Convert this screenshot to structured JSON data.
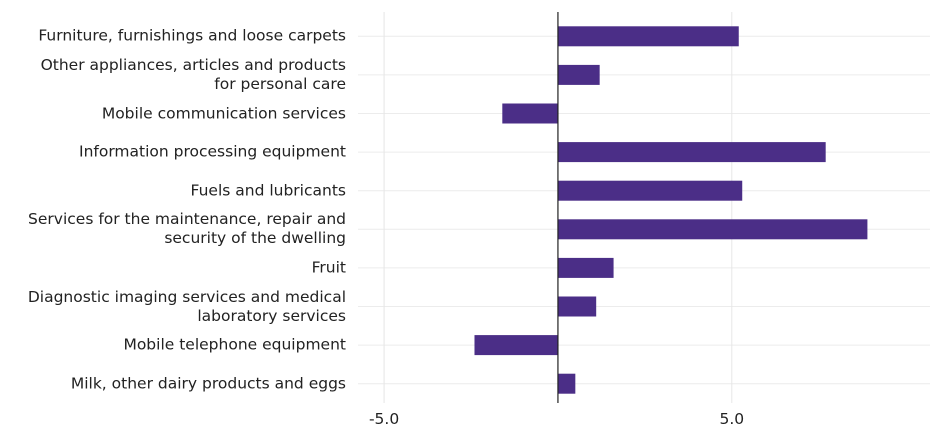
{
  "chart_data": {
    "type": "barh",
    "categories": [
      "Furniture, furnishings and loose carpets",
      "Other appliances, articles and products\nfor personal care",
      "Mobile communication services",
      "Information processing equipment",
      "Fuels and lubricants",
      "Services for the maintenance, repair and\nsecurity of the dwelling",
      "Fruit",
      "Diagnostic imaging services and medical\nlaboratory services",
      "Mobile telephone equipment",
      "Milk, other dairy products and eggs"
    ],
    "values": [
      5.2,
      1.2,
      -1.6,
      7.7,
      5.3,
      8.9,
      1.6,
      1.1,
      -2.4,
      0.5
    ],
    "color": "#4b2e87",
    "xlim": [
      -5.75,
      10.7
    ],
    "xticks": [
      {
        "value": -5,
        "label": "-5.0"
      },
      {
        "value": 5,
        "label": "5.0"
      }
    ],
    "grid": true
  }
}
